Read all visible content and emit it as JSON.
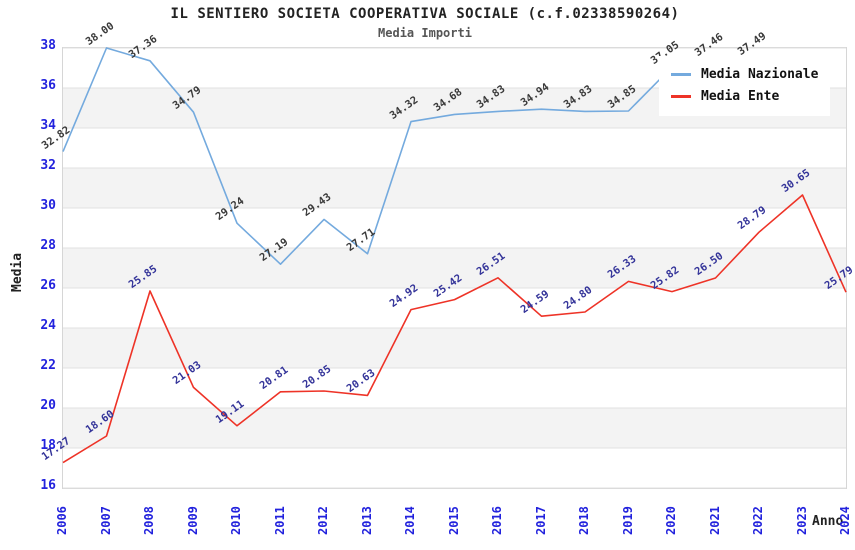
{
  "chart": {
    "title": "IL SENTIERO SOCIETA COOPERATIVA SOCIALE (c.f.02338590264)",
    "subtitle": "Media Importi",
    "xlabel": "Anno",
    "ylabel": "Media",
    "colors": {
      "tick_labels": "#2222dd",
      "grid_line": "#e0e0e0",
      "band_fill": "#f3f3f3",
      "plot_border": "#d6d6d6",
      "national_label_text": "#3a3a3a",
      "ente_label_text": "#333399"
    }
  },
  "chart_data": {
    "type": "line",
    "categories": [
      "2006",
      "2007",
      "2008",
      "2009",
      "2010",
      "2011",
      "2012",
      "2013",
      "2014",
      "2015",
      "2016",
      "2017",
      "2018",
      "2019",
      "2020",
      "2021",
      "2022",
      "2023",
      "2024"
    ],
    "series": [
      {
        "name": "Media Nazionale",
        "color": "#74aade",
        "label_color": "#3a3a3a",
        "values": [
          32.82,
          38.0,
          37.36,
          34.79,
          29.24,
          27.19,
          29.43,
          27.71,
          34.32,
          34.68,
          34.83,
          34.94,
          34.83,
          34.85,
          37.05,
          37.46,
          37.49,
          null,
          null
        ]
      },
      {
        "name": "Media Ente",
        "color": "#ee3327",
        "label_color": "#333399",
        "values": [
          17.27,
          18.6,
          25.85,
          21.03,
          19.11,
          20.81,
          20.85,
          20.63,
          24.92,
          25.42,
          26.51,
          24.59,
          24.8,
          26.33,
          25.82,
          26.5,
          28.79,
          30.65,
          25.79
        ]
      }
    ],
    "ylim": [
      16,
      38
    ],
    "ytick_step": 2,
    "grid": true,
    "legend_position": "top-right"
  }
}
